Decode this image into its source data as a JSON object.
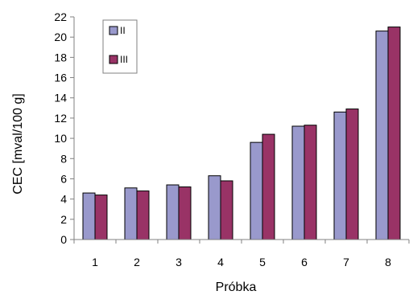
{
  "chart_data": {
    "type": "bar",
    "categories": [
      "1",
      "2",
      "3",
      "4",
      "5",
      "6",
      "7",
      "8"
    ],
    "series": [
      {
        "name": "II",
        "color": "#9999cc",
        "values": [
          4.6,
          5.1,
          5.4,
          6.3,
          9.6,
          11.2,
          12.6,
          20.6
        ]
      },
      {
        "name": "III",
        "color": "#993366",
        "values": [
          4.4,
          4.8,
          5.2,
          5.8,
          10.4,
          11.3,
          12.9,
          21.0
        ]
      }
    ],
    "xlabel": "Próbka",
    "ylabel": "CEC [mval/100 g]",
    "ylim": [
      0,
      22
    ],
    "yticks": [
      0,
      2,
      4,
      6,
      8,
      10,
      12,
      14,
      16,
      18,
      20,
      22
    ],
    "grid": false,
    "legend_position": "top-left"
  }
}
